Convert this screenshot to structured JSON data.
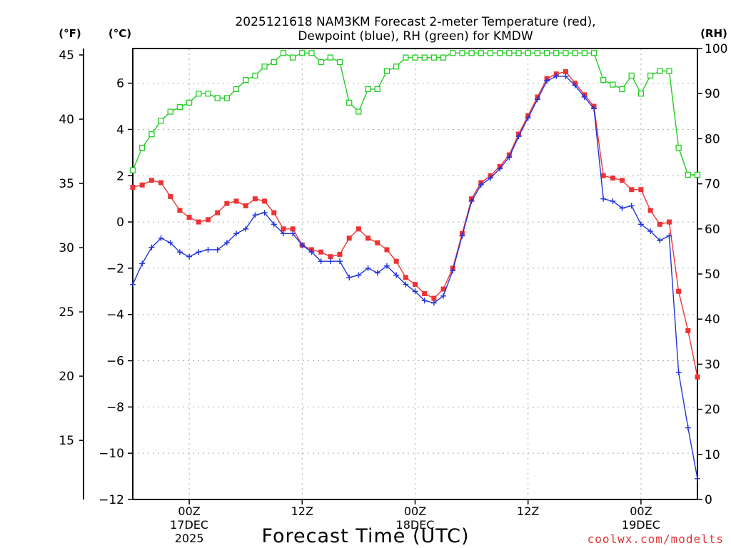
{
  "chart_data": {
    "type": "line",
    "title_line1": "2025121618 NAM3KM Forecast 2-meter Temperature (red),",
    "title_line2": "Dewpoint (blue), RH (green) for KMDW",
    "xlabel": "Forecast Time (UTC)",
    "unit_f": "(°F)",
    "unit_c": "(°C)",
    "unit_rh": "(RH)",
    "credit": "coolwx.com/modelts",
    "colors": {
      "temperature": "#ee3333",
      "dewpoint": "#2233dd",
      "rh": "#22cc22"
    },
    "ylim_c": [
      -12,
      7.5
    ],
    "ylim_f": [
      10.4,
      45.5
    ],
    "ylim_rh": [
      0,
      100
    ],
    "xlim_hours": [
      0,
      60
    ],
    "c_ticks": [
      {
        "v": 6,
        "label": "6"
      },
      {
        "v": 4,
        "label": "4"
      },
      {
        "v": 2,
        "label": "2"
      },
      {
        "v": 0,
        "label": "0"
      },
      {
        "v": -2,
        "label": "−2"
      },
      {
        "v": -4,
        "label": "−4"
      },
      {
        "v": -6,
        "label": "−6"
      },
      {
        "v": -8,
        "label": "−8"
      },
      {
        "v": -10,
        "label": "−10"
      },
      {
        "v": -12,
        "label": "−12"
      }
    ],
    "f_ticks": [
      {
        "v": 45,
        "label": "45"
      },
      {
        "v": 40,
        "label": "40"
      },
      {
        "v": 35,
        "label": "35"
      },
      {
        "v": 30,
        "label": "30"
      },
      {
        "v": 25,
        "label": "25"
      },
      {
        "v": 20,
        "label": "20"
      },
      {
        "v": 15,
        "label": "15"
      }
    ],
    "rh_ticks": [
      {
        "v": 100,
        "label": "100"
      },
      {
        "v": 90,
        "label": "90"
      },
      {
        "v": 80,
        "label": "80"
      },
      {
        "v": 70,
        "label": "70"
      },
      {
        "v": 60,
        "label": "60"
      },
      {
        "v": 50,
        "label": "50"
      },
      {
        "v": 40,
        "label": "40"
      },
      {
        "v": 30,
        "label": "30"
      },
      {
        "v": 20,
        "label": "20"
      },
      {
        "v": 10,
        "label": "10"
      },
      {
        "v": 0,
        "label": "0"
      }
    ],
    "x_ticks": [
      {
        "h": 6,
        "l1": "00Z",
        "l2": "17DEC",
        "l3": "2025"
      },
      {
        "h": 18,
        "l1": "12Z",
        "l2": "",
        "l3": ""
      },
      {
        "h": 30,
        "l1": "00Z",
        "l2": "18DEC",
        "l3": ""
      },
      {
        "h": 42,
        "l1": "12Z",
        "l2": "",
        "l3": ""
      },
      {
        "h": 54,
        "l1": "00Z",
        "l2": "19DEC",
        "l3": ""
      }
    ],
    "series": [
      {
        "name": "Temperature",
        "marker": "filled-square",
        "x": [
          0,
          1,
          2,
          3,
          4,
          5,
          6,
          7,
          8,
          9,
          10,
          11,
          12,
          13,
          14,
          15,
          16,
          17,
          18,
          19,
          20,
          21,
          22,
          23,
          24,
          25,
          26,
          27,
          28,
          29,
          30,
          31,
          32,
          33,
          34,
          35,
          36,
          37,
          38,
          39,
          40,
          41,
          42,
          43,
          44,
          45,
          46,
          47,
          48,
          49,
          50,
          51,
          52,
          53,
          54,
          55,
          56,
          57,
          58,
          59,
          60
        ],
        "values": [
          1.5,
          1.6,
          1.8,
          1.7,
          1.1,
          0.5,
          0.2,
          0.0,
          0.1,
          0.4,
          0.8,
          0.9,
          0.7,
          1.0,
          0.9,
          0.4,
          -0.3,
          -0.3,
          -1.0,
          -1.2,
          -1.3,
          -1.5,
          -1.4,
          -0.7,
          -0.3,
          -0.7,
          -0.9,
          -1.2,
          -1.7,
          -2.4,
          -2.7,
          -3.1,
          -3.3,
          -2.9,
          -2.0,
          -0.5,
          1.0,
          1.7,
          2.0,
          2.4,
          2.9,
          3.8,
          4.6,
          5.4,
          6.2,
          6.4,
          6.5,
          6.0,
          5.5,
          5.0,
          2.0,
          1.9,
          1.8,
          1.4,
          1.4,
          0.5,
          -0.1,
          0.0,
          -3.0,
          -4.7,
          -6.7
        ]
      },
      {
        "name": "Dewpoint",
        "marker": "plus",
        "x": [
          0,
          1,
          2,
          3,
          4,
          5,
          6,
          7,
          8,
          9,
          10,
          11,
          12,
          13,
          14,
          15,
          16,
          17,
          18,
          19,
          20,
          21,
          22,
          23,
          24,
          25,
          26,
          27,
          28,
          29,
          30,
          31,
          32,
          33,
          34,
          35,
          36,
          37,
          38,
          39,
          40,
          41,
          42,
          43,
          44,
          45,
          46,
          47,
          48,
          49,
          50,
          51,
          52,
          53,
          54,
          55,
          56,
          57,
          58,
          59,
          60
        ],
        "values": [
          -2.7,
          -1.8,
          -1.1,
          -0.7,
          -0.9,
          -1.3,
          -1.5,
          -1.3,
          -1.2,
          -1.2,
          -0.9,
          -0.5,
          -0.3,
          0.3,
          0.4,
          -0.1,
          -0.5,
          -0.5,
          -1.0,
          -1.3,
          -1.7,
          -1.7,
          -1.7,
          -2.4,
          -2.3,
          -2.0,
          -2.2,
          -1.9,
          -2.3,
          -2.7,
          -3.0,
          -3.4,
          -3.5,
          -3.2,
          -2.1,
          -0.6,
          0.9,
          1.6,
          1.9,
          2.3,
          2.8,
          3.7,
          4.5,
          5.3,
          6.1,
          6.3,
          6.3,
          5.9,
          5.4,
          4.9,
          1.0,
          0.9,
          0.6,
          0.7,
          -0.1,
          -0.4,
          -0.8,
          -0.6,
          -6.5,
          -8.9,
          -11.1
        ]
      },
      {
        "name": "RH",
        "marker": "open-square",
        "x": [
          0,
          1,
          2,
          3,
          4,
          5,
          6,
          7,
          8,
          9,
          10,
          11,
          12,
          13,
          14,
          15,
          16,
          17,
          18,
          19,
          20,
          21,
          22,
          23,
          24,
          25,
          26,
          27,
          28,
          29,
          30,
          31,
          32,
          33,
          34,
          35,
          36,
          37,
          38,
          39,
          40,
          41,
          42,
          43,
          44,
          45,
          46,
          47,
          48,
          49,
          50,
          51,
          52,
          53,
          54,
          55,
          56,
          57,
          58,
          59,
          60
        ],
        "values": [
          73,
          78,
          81,
          84,
          86,
          87,
          88,
          90,
          90,
          89,
          89,
          91,
          93,
          94,
          96,
          97,
          99,
          98,
          99,
          99,
          97,
          98,
          97,
          88,
          86,
          91,
          91,
          95,
          96,
          98,
          98,
          98,
          98,
          98,
          99,
          99,
          99,
          99,
          99,
          99,
          99,
          99,
          99,
          99,
          99,
          99,
          99,
          99,
          99,
          99,
          93,
          92,
          91,
          94,
          90,
          94,
          95,
          95,
          78,
          72,
          72
        ]
      }
    ]
  }
}
